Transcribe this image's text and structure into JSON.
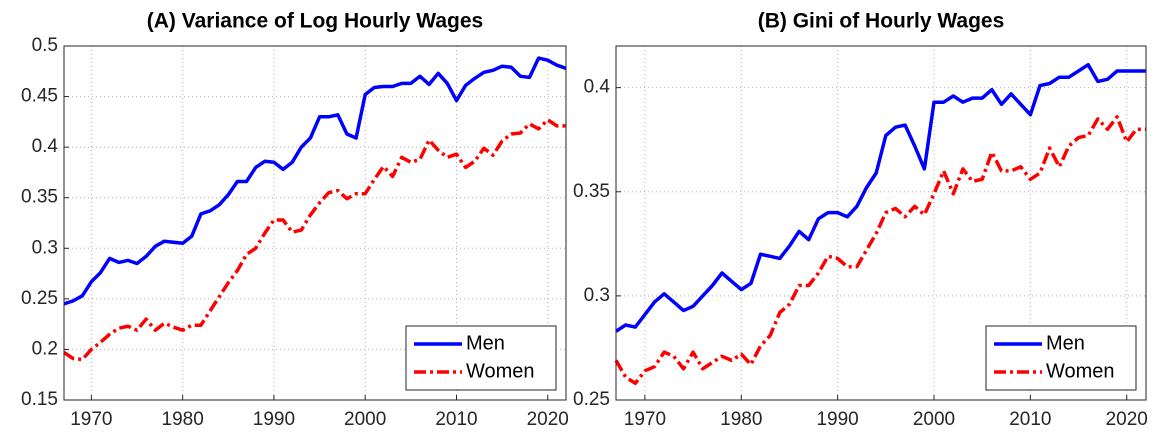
{
  "chart_data": [
    {
      "type": "line",
      "title": "(A) Variance of Log Hourly Wages",
      "x": [
        1967,
        1968,
        1969,
        1970,
        1971,
        1972,
        1973,
        1974,
        1975,
        1976,
        1977,
        1978,
        1979,
        1980,
        1981,
        1982,
        1983,
        1984,
        1985,
        1986,
        1987,
        1988,
        1989,
        1990,
        1991,
        1992,
        1993,
        1994,
        1995,
        1996,
        1997,
        1998,
        1999,
        2000,
        2001,
        2002,
        2003,
        2004,
        2005,
        2006,
        2007,
        2008,
        2009,
        2010,
        2011,
        2012,
        2013,
        2014,
        2015,
        2016,
        2017,
        2018,
        2019,
        2020,
        2021,
        2022
      ],
      "series": [
        {
          "name": "Men",
          "color": "#0000ff",
          "dash": "solid",
          "values": [
            0.245,
            0.248,
            0.253,
            0.267,
            0.276,
            0.29,
            0.286,
            0.288,
            0.285,
            0.292,
            0.302,
            0.307,
            0.306,
            0.305,
            0.312,
            0.334,
            0.337,
            0.343,
            0.353,
            0.366,
            0.366,
            0.38,
            0.386,
            0.385,
            0.378,
            0.385,
            0.4,
            0.409,
            0.43,
            0.43,
            0.432,
            0.413,
            0.409,
            0.452,
            0.459,
            0.46,
            0.46,
            0.463,
            0.463,
            0.47,
            0.462,
            0.473,
            0.463,
            0.446,
            0.461,
            0.468,
            0.474,
            0.476,
            0.48,
            0.479,
            0.47,
            0.469,
            0.488,
            0.486,
            0.481,
            0.478
          ]
        },
        {
          "name": "Women",
          "color": "#ff0000",
          "dash": "dashdot",
          "values": [
            0.197,
            0.191,
            0.19,
            0.2,
            0.207,
            0.215,
            0.221,
            0.223,
            0.219,
            0.23,
            0.219,
            0.226,
            0.222,
            0.219,
            0.224,
            0.224,
            0.238,
            0.252,
            0.266,
            0.278,
            0.294,
            0.3,
            0.315,
            0.328,
            0.328,
            0.316,
            0.318,
            0.333,
            0.345,
            0.355,
            0.357,
            0.349,
            0.354,
            0.354,
            0.368,
            0.381,
            0.371,
            0.39,
            0.385,
            0.388,
            0.407,
            0.397,
            0.39,
            0.393,
            0.38,
            0.386,
            0.399,
            0.392,
            0.406,
            0.413,
            0.414,
            0.423,
            0.418,
            0.427,
            0.421,
            0.421
          ]
        }
      ],
      "xlim": [
        1967,
        2022
      ],
      "xticks": [
        1970,
        1980,
        1990,
        2000,
        2010,
        2020
      ],
      "ylim": [
        0.15,
        0.5
      ],
      "yticks": [
        0.15,
        0.2,
        0.25,
        0.3,
        0.35,
        0.4,
        0.45,
        0.5
      ],
      "grid": true,
      "legend": "lower right"
    },
    {
      "type": "line",
      "title": "(B) Gini of Hourly Wages",
      "x": [
        1967,
        1968,
        1969,
        1970,
        1971,
        1972,
        1973,
        1974,
        1975,
        1976,
        1977,
        1978,
        1979,
        1980,
        1981,
        1982,
        1983,
        1984,
        1985,
        1986,
        1987,
        1988,
        1989,
        1990,
        1991,
        1992,
        1993,
        1994,
        1995,
        1996,
        1997,
        1998,
        1999,
        2000,
        2001,
        2002,
        2003,
        2004,
        2005,
        2006,
        2007,
        2008,
        2009,
        2010,
        2011,
        2012,
        2013,
        2014,
        2015,
        2016,
        2017,
        2018,
        2019,
        2020,
        2021,
        2022
      ],
      "series": [
        {
          "name": "Men",
          "color": "#0000ff",
          "dash": "solid",
          "values": [
            0.283,
            0.286,
            0.285,
            0.291,
            0.297,
            0.301,
            0.297,
            0.293,
            0.295,
            0.3,
            0.305,
            0.311,
            0.307,
            0.303,
            0.306,
            0.32,
            0.319,
            0.318,
            0.324,
            0.331,
            0.327,
            0.337,
            0.34,
            0.34,
            0.338,
            0.343,
            0.352,
            0.359,
            0.377,
            0.381,
            0.382,
            0.372,
            0.361,
            0.393,
            0.393,
            0.396,
            0.393,
            0.395,
            0.395,
            0.399,
            0.392,
            0.397,
            0.392,
            0.387,
            0.401,
            0.402,
            0.405,
            0.405,
            0.408,
            0.411,
            0.403,
            0.404,
            0.408,
            0.408,
            0.408,
            0.408
          ]
        },
        {
          "name": "Women",
          "color": "#ff0000",
          "dash": "dashdot",
          "values": [
            0.269,
            0.261,
            0.258,
            0.264,
            0.266,
            0.273,
            0.271,
            0.265,
            0.273,
            0.265,
            0.268,
            0.271,
            0.269,
            0.272,
            0.267,
            0.276,
            0.281,
            0.292,
            0.296,
            0.305,
            0.305,
            0.311,
            0.319,
            0.318,
            0.314,
            0.314,
            0.322,
            0.33,
            0.34,
            0.342,
            0.338,
            0.343,
            0.339,
            0.349,
            0.36,
            0.349,
            0.361,
            0.355,
            0.356,
            0.369,
            0.36,
            0.36,
            0.362,
            0.356,
            0.359,
            0.371,
            0.362,
            0.372,
            0.376,
            0.377,
            0.385,
            0.38,
            0.386,
            0.374,
            0.38,
            0.38
          ]
        }
      ],
      "xlim": [
        1967,
        2022
      ],
      "xticks": [
        1970,
        1980,
        1990,
        2000,
        2010,
        2020
      ],
      "ylim": [
        0.25,
        0.42
      ],
      "yticks": [
        0.25,
        0.3,
        0.35,
        0.4
      ],
      "grid": true,
      "legend": "lower right"
    }
  ]
}
